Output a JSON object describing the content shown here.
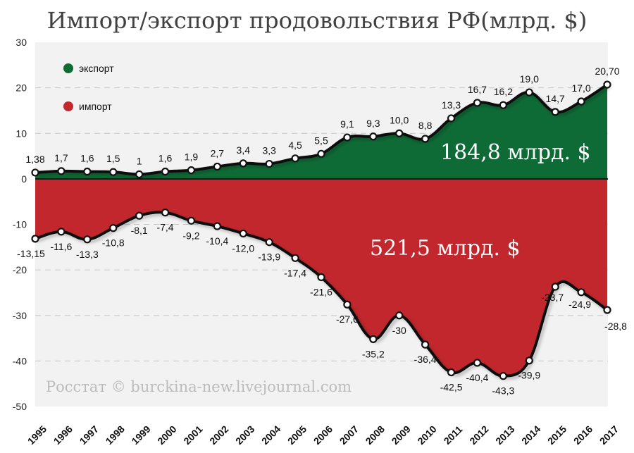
{
  "chart_data": {
    "type": "area",
    "title": "Импорт/экспорт продовольствия РФ(млрд. $)",
    "ylim": [
      -50,
      30
    ],
    "yticks": [
      30,
      20,
      10,
      0,
      -10,
      -20,
      -30,
      -40,
      -50
    ],
    "grid": true,
    "legend_position": "top-left",
    "x": [
      "1995",
      "1996",
      "1997",
      "1998",
      "1999",
      "2000",
      "2001",
      "2002",
      "2003",
      "2004",
      "2005",
      "2006",
      "2007",
      "2008",
      "2009",
      "2010",
      "2011",
      "2012",
      "2013",
      "2014",
      "2015",
      "2016",
      "2017"
    ],
    "series": [
      {
        "name": "экспорт",
        "color": "#0f6b36",
        "values": [
          1.38,
          1.7,
          1.6,
          1.5,
          1,
          1.6,
          1.9,
          2.7,
          3.4,
          3.3,
          4.5,
          5.5,
          9.1,
          9.3,
          10.0,
          8.8,
          13.3,
          16.7,
          16.2,
          19.0,
          14.7,
          17.0,
          20.7
        ],
        "labels": [
          "1,38",
          "1,7",
          "1,6",
          "1,5",
          "1",
          "1,6",
          "1,9",
          "2,7",
          "3,4",
          "3,3",
          "4,5",
          "5,5",
          "9,1",
          "9,3",
          "10,0",
          "8,8",
          "13,3",
          "16,7",
          "16,2",
          "19,0",
          "14,7",
          "17,0",
          "20,70"
        ]
      },
      {
        "name": "импорт",
        "color": "#c1272d",
        "values": [
          -13.15,
          -11.6,
          -13.3,
          -10.8,
          -8.1,
          -7.4,
          -9.2,
          -10.4,
          -12.0,
          -13.9,
          -17.4,
          -21.6,
          -27.6,
          -35.2,
          -30,
          -36.4,
          -42.5,
          -40.4,
          -43.3,
          -39.9,
          -23.7,
          -24.9,
          -28.8
        ],
        "labels": [
          "-13,15",
          "-11,6",
          "-13,3",
          "-10,8",
          "-8,1",
          "-7,4",
          "-9,2",
          "-10,4",
          "-12,0",
          "-13,9",
          "-17,4",
          "-21,6",
          "-27,6",
          "-35,2",
          "-30",
          "-36,4",
          "-42,5",
          "-40,4",
          "-43,3",
          "-39,9",
          "-23,7",
          "-24,9",
          "-28,8"
        ]
      }
    ],
    "annotations": {
      "export_total": "184,8 млрд. $",
      "import_total": "521,5 млрд. $",
      "source": "Росстат © burckina-new.livejournal.com"
    }
  }
}
